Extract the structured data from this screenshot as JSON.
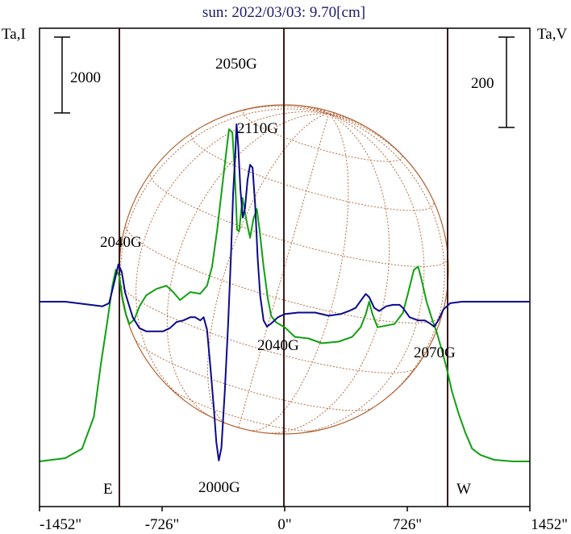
{
  "chart_data": {
    "type": "line",
    "title": "sun: 2022/03/03: 9.70[cm]",
    "left_axis_label": "Ta,I",
    "right_axis_label": "Ta,V",
    "x_ticks": [
      {
        "value": -1452,
        "label": "-1452\""
      },
      {
        "value": -726,
        "label": "-726\""
      },
      {
        "value": 0,
        "label": "0\""
      },
      {
        "value": 726,
        "label": "726\""
      },
      {
        "value": 1452,
        "label": "1452\""
      }
    ],
    "xlim": [
      -1452,
      1452
    ],
    "limb_labels": [
      {
        "x": -970,
        "label": "E"
      },
      {
        "x": 970,
        "label": "W"
      }
    ],
    "scale_bars": [
      {
        "side": "left",
        "label": "2000"
      },
      {
        "side": "right",
        "label": "200"
      }
    ],
    "colors": {
      "ta_i": "#10a010",
      "ta_v": "#0a0a8c",
      "disk": "#b06030",
      "frame": "#000000",
      "vline": "#3a1a1a"
    },
    "series": [
      {
        "key": "ta_i",
        "points": [
          [
            -1452,
            -1
          ],
          [
            -1300,
            -0.98
          ],
          [
            -1200,
            -0.92
          ],
          [
            -1130,
            -0.72
          ],
          [
            -1090,
            -0.4
          ],
          [
            -1050,
            -0.12
          ],
          [
            -1020,
            0.1
          ],
          [
            -1000,
            0.2
          ],
          [
            -980,
            0.16
          ],
          [
            -960,
            0.02
          ],
          [
            -940,
            -0.08
          ],
          [
            -920,
            -0.14
          ],
          [
            -890,
            -0.11
          ],
          [
            -860,
            -0.03
          ],
          [
            -820,
            0.04
          ],
          [
            -760,
            0.08
          ],
          [
            -700,
            0.1
          ],
          [
            -660,
            0.06
          ],
          [
            -620,
            0.01
          ],
          [
            -560,
            0.06
          ],
          [
            -500,
            0.05
          ],
          [
            -460,
            0.1
          ],
          [
            -430,
            0.22
          ],
          [
            -400,
            0.45
          ],
          [
            -370,
            0.72
          ],
          [
            -350,
            0.9
          ],
          [
            -330,
            1.08
          ],
          [
            -310,
            1.06
          ],
          [
            -295,
            0.8
          ],
          [
            -282,
            0.45
          ],
          [
            -270,
            0.44
          ],
          [
            -250,
            0.65
          ],
          [
            -225,
            0.5
          ],
          [
            -205,
            0.4
          ],
          [
            -185,
            0.52
          ],
          [
            -165,
            0.58
          ],
          [
            -150,
            0.46
          ],
          [
            -125,
            0.22
          ],
          [
            -100,
            0.02
          ],
          [
            -80,
            -0.09
          ],
          [
            -50,
            -0.13
          ],
          [
            0,
            -0.16
          ],
          [
            60,
            -0.22
          ],
          [
            140,
            -0.23
          ],
          [
            220,
            -0.26
          ],
          [
            320,
            -0.25
          ],
          [
            400,
            -0.22
          ],
          [
            450,
            -0.16
          ],
          [
            480,
            -0.08
          ],
          [
            500,
            0.0
          ],
          [
            520,
            -0.08
          ],
          [
            550,
            -0.16
          ],
          [
            600,
            -0.15
          ],
          [
            650,
            -0.14
          ],
          [
            700,
            -0.07
          ],
          [
            730,
            0.05
          ],
          [
            765,
            0.2
          ],
          [
            790,
            0.22
          ],
          [
            810,
            0.14
          ],
          [
            840,
            0.0
          ],
          [
            870,
            -0.1
          ],
          [
            900,
            -0.19
          ],
          [
            930,
            -0.3
          ],
          [
            960,
            -0.42
          ],
          [
            990,
            -0.56
          ],
          [
            1030,
            -0.7
          ],
          [
            1070,
            -0.82
          ],
          [
            1110,
            -0.92
          ],
          [
            1160,
            -0.96
          ],
          [
            1240,
            -0.99
          ],
          [
            1350,
            -1
          ],
          [
            1452,
            -1
          ]
        ]
      },
      {
        "key": "ta_v",
        "points": [
          [
            -1452,
            0
          ],
          [
            -1300,
            0.0
          ],
          [
            -1150,
            -0.02
          ],
          [
            -1080,
            -0.03
          ],
          [
            -1040,
            -0.01
          ],
          [
            -1010,
            0.12
          ],
          [
            -985,
            0.24
          ],
          [
            -965,
            0.19
          ],
          [
            -945,
            0.06
          ],
          [
            -920,
            -0.03
          ],
          [
            -900,
            -0.1
          ],
          [
            -860,
            -0.17
          ],
          [
            -820,
            -0.19
          ],
          [
            -760,
            -0.19
          ],
          [
            -720,
            -0.19
          ],
          [
            -680,
            -0.17
          ],
          [
            -640,
            -0.13
          ],
          [
            -600,
            -0.12
          ],
          [
            -560,
            -0.1
          ],
          [
            -530,
            -0.1
          ],
          [
            -500,
            -0.12
          ],
          [
            -480,
            -0.1
          ],
          [
            -460,
            -0.18
          ],
          [
            -440,
            -0.42
          ],
          [
            -420,
            -0.68
          ],
          [
            -405,
            -0.9
          ],
          [
            -390,
            -1.02
          ],
          [
            -375,
            -0.94
          ],
          [
            -355,
            -0.58
          ],
          [
            -335,
            -0.14
          ],
          [
            -318,
            0.3
          ],
          [
            -305,
            0.7
          ],
          [
            -292,
            0.96
          ],
          [
            -285,
            1.14
          ],
          [
            -275,
            1.0
          ],
          [
            -262,
            0.72
          ],
          [
            -248,
            0.54
          ],
          [
            -235,
            0.6
          ],
          [
            -220,
            0.78
          ],
          [
            -205,
            0.88
          ],
          [
            -190,
            0.86
          ],
          [
            -175,
            0.62
          ],
          [
            -160,
            0.28
          ],
          [
            -145,
            0.04
          ],
          [
            -125,
            -0.12
          ],
          [
            -105,
            -0.16
          ],
          [
            -80,
            -0.14
          ],
          [
            -40,
            -0.1
          ],
          [
            0,
            -0.08
          ],
          [
            80,
            -0.07
          ],
          [
            180,
            -0.07
          ],
          [
            260,
            -0.09
          ],
          [
            330,
            -0.08
          ],
          [
            380,
            -0.06
          ],
          [
            420,
            -0.04
          ],
          [
            460,
            0.02
          ],
          [
            480,
            0.05
          ],
          [
            500,
            0.03
          ],
          [
            530,
            -0.04
          ],
          [
            560,
            -0.06
          ],
          [
            600,
            -0.03
          ],
          [
            640,
            -0.02
          ],
          [
            680,
            -0.02
          ],
          [
            700,
            -0.04
          ],
          [
            740,
            -0.1
          ],
          [
            790,
            -0.12
          ],
          [
            830,
            -0.12
          ],
          [
            860,
            -0.14
          ],
          [
            885,
            -0.16
          ],
          [
            910,
            -0.12
          ],
          [
            940,
            -0.05
          ],
          [
            980,
            -0.01
          ],
          [
            1050,
            0.0
          ],
          [
            1200,
            0.0
          ],
          [
            1452,
            0.0
          ]
        ]
      }
    ],
    "annotations": [
      {
        "text": "2050G"
      },
      {
        "text": "2110G"
      },
      {
        "text": "2040G"
      },
      {
        "text": "2040G"
      },
      {
        "text": "2070G"
      },
      {
        "text": "2000G"
      }
    ]
  }
}
